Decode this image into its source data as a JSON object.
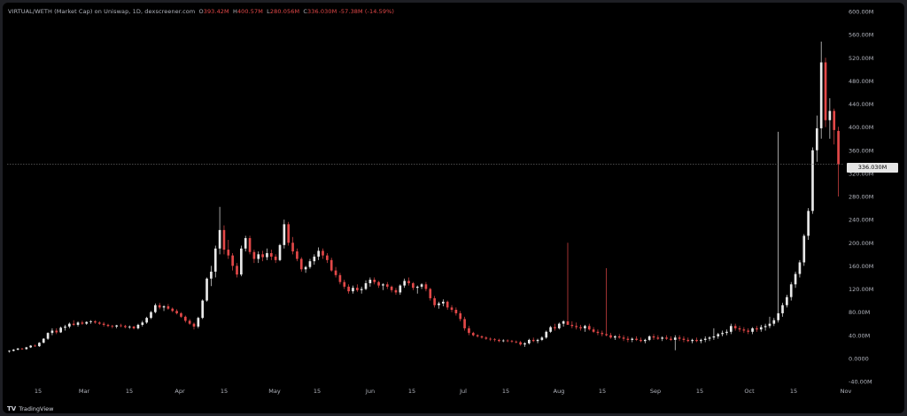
{
  "legend": {
    "symbol": "VIRTUAL/WETH (Market Cap) on Uniswap, 1D, dexscreener.com",
    "open_label": "O",
    "open": "393.42M",
    "high_label": "H",
    "high": "400.57M",
    "low_label": "L",
    "low": "280.056M",
    "close_label": "C",
    "close": "336.030M",
    "change": "-57.38M (-14.59%)"
  },
  "brand": {
    "name": "TradingView",
    "logo": "TV"
  },
  "colors": {
    "up": "#e9e9e9",
    "down": "#e34848",
    "background": "#000000",
    "axis_text": "#b2b5be"
  },
  "chart_data": {
    "type": "candlestick",
    "y_unit": "M",
    "ylim": [
      -40,
      600
    ],
    "y_ticks": [
      -40,
      0,
      40,
      80,
      120,
      160,
      200,
      240,
      280,
      320,
      360,
      400,
      440,
      480,
      520,
      560,
      600
    ],
    "y_tick_labels": [
      "-40.00M",
      "0.0000",
      "40.00M",
      "80.00M",
      "120.00M",
      "160.00M",
      "200.00M",
      "240.00M",
      "280.00M",
      "320.00M",
      "360.00M",
      "400.00M",
      "440.00M",
      "480.00M",
      "520.00M",
      "560.00M",
      "600.00M"
    ],
    "x_ticks": [
      "15",
      "Mar",
      "15",
      "Apr",
      "15",
      "May",
      "15",
      "Jun",
      "15",
      "Jul",
      "15",
      "Aug",
      "15",
      "Sep",
      "15",
      "Oct",
      "15",
      "Nov"
    ],
    "last_price": 336.03,
    "last_price_label": "336.030M",
    "grid": false,
    "candles": [
      [
        12,
        14,
        10,
        13
      ],
      [
        13,
        16,
        12,
        15
      ],
      [
        15,
        18,
        14,
        17
      ],
      [
        17,
        18,
        15,
        16
      ],
      [
        16,
        20,
        15,
        19
      ],
      [
        19,
        23,
        18,
        22
      ],
      [
        22,
        24,
        20,
        21
      ],
      [
        21,
        28,
        20,
        27
      ],
      [
        27,
        35,
        26,
        34
      ],
      [
        34,
        45,
        32,
        44
      ],
      [
        44,
        52,
        40,
        48
      ],
      [
        48,
        52,
        42,
        45
      ],
      [
        45,
        55,
        44,
        53
      ],
      [
        53,
        58,
        48,
        55
      ],
      [
        55,
        62,
        52,
        60
      ],
      [
        60,
        66,
        56,
        58
      ],
      [
        58,
        64,
        55,
        62
      ],
      [
        62,
        65,
        58,
        60
      ],
      [
        60,
        64,
        58,
        63
      ],
      [
        63,
        66,
        60,
        64
      ],
      [
        64,
        66,
        60,
        62
      ],
      [
        62,
        64,
        58,
        60
      ],
      [
        60,
        63,
        55,
        58
      ],
      [
        58,
        60,
        54,
        56
      ],
      [
        56,
        58,
        52,
        55
      ],
      [
        55,
        58,
        52,
        57
      ],
      [
        57,
        60,
        54,
        56
      ],
      [
        56,
        58,
        52,
        54
      ],
      [
        54,
        57,
        51,
        55
      ],
      [
        55,
        56,
        50,
        52
      ],
      [
        52,
        60,
        50,
        58
      ],
      [
        58,
        65,
        55,
        62
      ],
      [
        62,
        72,
        60,
        70
      ],
      [
        70,
        82,
        68,
        80
      ],
      [
        80,
        95,
        78,
        92
      ],
      [
        92,
        96,
        85,
        88
      ],
      [
        88,
        92,
        82,
        90
      ],
      [
        90,
        94,
        84,
        86
      ],
      [
        86,
        88,
        80,
        82
      ],
      [
        82,
        85,
        76,
        78
      ],
      [
        78,
        80,
        70,
        72
      ],
      [
        72,
        74,
        62,
        65
      ],
      [
        65,
        68,
        58,
        60
      ],
      [
        60,
        62,
        50,
        55
      ],
      [
        55,
        72,
        52,
        70
      ],
      [
        70,
        102,
        68,
        100
      ],
      [
        100,
        140,
        98,
        138
      ],
      [
        138,
        160,
        125,
        150
      ],
      [
        150,
        195,
        140,
        190
      ],
      [
        190,
        262,
        180,
        222
      ],
      [
        222,
        230,
        180,
        188
      ],
      [
        188,
        205,
        172,
        178
      ],
      [
        178,
        182,
        152,
        160
      ],
      [
        160,
        165,
        140,
        145
      ],
      [
        145,
        195,
        142,
        190
      ],
      [
        190,
        212,
        185,
        208
      ],
      [
        208,
        212,
        180,
        184
      ],
      [
        184,
        188,
        165,
        172
      ],
      [
        172,
        185,
        165,
        180
      ],
      [
        180,
        186,
        168,
        175
      ],
      [
        175,
        190,
        170,
        182
      ],
      [
        182,
        188,
        170,
        176
      ],
      [
        176,
        180,
        165,
        170
      ],
      [
        170,
        198,
        168,
        196
      ],
      [
        196,
        240,
        190,
        232
      ],
      [
        232,
        236,
        195,
        200
      ],
      [
        200,
        210,
        180,
        185
      ],
      [
        185,
        190,
        168,
        172
      ],
      [
        172,
        175,
        150,
        154
      ],
      [
        154,
        160,
        148,
        158
      ],
      [
        158,
        172,
        155,
        168
      ],
      [
        168,
        180,
        162,
        176
      ],
      [
        176,
        192,
        170,
        186
      ],
      [
        186,
        190,
        172,
        178
      ],
      [
        178,
        182,
        165,
        170
      ],
      [
        170,
        174,
        150,
        152
      ],
      [
        152,
        158,
        140,
        144
      ],
      [
        144,
        148,
        128,
        132
      ],
      [
        132,
        136,
        120,
        124
      ],
      [
        124,
        128,
        112,
        116
      ],
      [
        116,
        126,
        112,
        122
      ],
      [
        122,
        128,
        115,
        118
      ],
      [
        118,
        124,
        112,
        120
      ],
      [
        120,
        135,
        118,
        130
      ],
      [
        130,
        140,
        124,
        136
      ],
      [
        136,
        140,
        128,
        132
      ],
      [
        132,
        134,
        122,
        126
      ],
      [
        126,
        130,
        118,
        128
      ],
      [
        128,
        132,
        120,
        124
      ],
      [
        124,
        126,
        114,
        118
      ],
      [
        118,
        122,
        110,
        114
      ],
      [
        114,
        128,
        110,
        126
      ],
      [
        126,
        138,
        122,
        134
      ],
      [
        134,
        140,
        126,
        130
      ],
      [
        130,
        132,
        118,
        122
      ],
      [
        122,
        126,
        112,
        124
      ],
      [
        124,
        130,
        120,
        128
      ],
      [
        128,
        132,
        116,
        120
      ],
      [
        120,
        122,
        100,
        104
      ],
      [
        104,
        108,
        88,
        92
      ],
      [
        92,
        98,
        86,
        95
      ],
      [
        95,
        102,
        90,
        98
      ],
      [
        98,
        100,
        84,
        88
      ],
      [
        88,
        92,
        80,
        84
      ],
      [
        84,
        88,
        74,
        78
      ],
      [
        78,
        82,
        64,
        68
      ],
      [
        68,
        72,
        48,
        52
      ],
      [
        52,
        56,
        40,
        44
      ],
      [
        44,
        46,
        38,
        40
      ],
      [
        40,
        42,
        36,
        38
      ],
      [
        38,
        40,
        34,
        36
      ],
      [
        36,
        38,
        32,
        34
      ],
      [
        34,
        36,
        30,
        33
      ],
      [
        33,
        35,
        29,
        32
      ],
      [
        32,
        34,
        28,
        30
      ],
      [
        30,
        33,
        28,
        31
      ],
      [
        31,
        33,
        28,
        30
      ],
      [
        30,
        32,
        27,
        29
      ],
      [
        29,
        31,
        26,
        28
      ],
      [
        28,
        30,
        22,
        24
      ],
      [
        24,
        28,
        20,
        26
      ],
      [
        26,
        34,
        24,
        32
      ],
      [
        32,
        36,
        28,
        30
      ],
      [
        30,
        34,
        26,
        32
      ],
      [
        32,
        38,
        30,
        36
      ],
      [
        36,
        48,
        34,
        46
      ],
      [
        46,
        56,
        44,
        54
      ],
      [
        54,
        60,
        48,
        52
      ],
      [
        52,
        62,
        50,
        60
      ],
      [
        60,
        66,
        55,
        64
      ],
      [
        64,
        200,
        60,
        58
      ],
      [
        58,
        64,
        52,
        56
      ],
      [
        56,
        62,
        50,
        54
      ],
      [
        54,
        58,
        48,
        52
      ],
      [
        52,
        58,
        46,
        56
      ],
      [
        56,
        60,
        48,
        50
      ],
      [
        50,
        54,
        44,
        46
      ],
      [
        46,
        50,
        40,
        44
      ],
      [
        44,
        48,
        38,
        42
      ],
      [
        42,
        156,
        38,
        40
      ],
      [
        40,
        44,
        34,
        36
      ],
      [
        36,
        40,
        32,
        38
      ],
      [
        38,
        42,
        34,
        36
      ],
      [
        36,
        40,
        30,
        34
      ],
      [
        34,
        38,
        28,
        32
      ],
      [
        32,
        36,
        28,
        34
      ],
      [
        34,
        38,
        30,
        32
      ],
      [
        32,
        36,
        28,
        30
      ],
      [
        30,
        34,
        26,
        32
      ],
      [
        32,
        40,
        30,
        38
      ],
      [
        38,
        42,
        32,
        36
      ],
      [
        36,
        40,
        32,
        34
      ],
      [
        34,
        38,
        30,
        36
      ],
      [
        36,
        40,
        32,
        34
      ],
      [
        34,
        38,
        30,
        32
      ],
      [
        32,
        40,
        14,
        36
      ],
      [
        36,
        40,
        30,
        34
      ],
      [
        34,
        38,
        28,
        32
      ],
      [
        32,
        36,
        28,
        30
      ],
      [
        30,
        34,
        26,
        32
      ],
      [
        32,
        36,
        28,
        30
      ],
      [
        30,
        34,
        26,
        32
      ],
      [
        32,
        38,
        28,
        34
      ],
      [
        34,
        38,
        30,
        36
      ],
      [
        36,
        52,
        32,
        38
      ],
      [
        38,
        44,
        34,
        42
      ],
      [
        42,
        48,
        38,
        44
      ],
      [
        44,
        50,
        40,
        46
      ],
      [
        46,
        60,
        42,
        56
      ],
      [
        56,
        60,
        48,
        52
      ],
      [
        52,
        56,
        46,
        50
      ],
      [
        50,
        54,
        44,
        48
      ],
      [
        48,
        52,
        42,
        46
      ],
      [
        46,
        54,
        42,
        52
      ],
      [
        52,
        56,
        46,
        50
      ],
      [
        50,
        58,
        46,
        54
      ],
      [
        54,
        60,
        48,
        56
      ],
      [
        56,
        72,
        52,
        60
      ],
      [
        60,
        70,
        56,
        66
      ],
      [
        66,
        392,
        62,
        78
      ],
      [
        78,
        96,
        72,
        92
      ],
      [
        92,
        110,
        88,
        106
      ],
      [
        106,
        132,
        100,
        128
      ],
      [
        128,
        150,
        122,
        146
      ],
      [
        146,
        170,
        140,
        166
      ],
      [
        166,
        215,
        160,
        212
      ],
      [
        212,
        260,
        205,
        255
      ],
      [
        255,
        365,
        250,
        360
      ],
      [
        360,
        420,
        340,
        398
      ],
      [
        398,
        548,
        380,
        512
      ],
      [
        512,
        520,
        400,
        412
      ],
      [
        412,
        450,
        380,
        428
      ],
      [
        428,
        432,
        370,
        395
      ],
      [
        393.42,
        400.57,
        280.056,
        336.03
      ]
    ]
  }
}
